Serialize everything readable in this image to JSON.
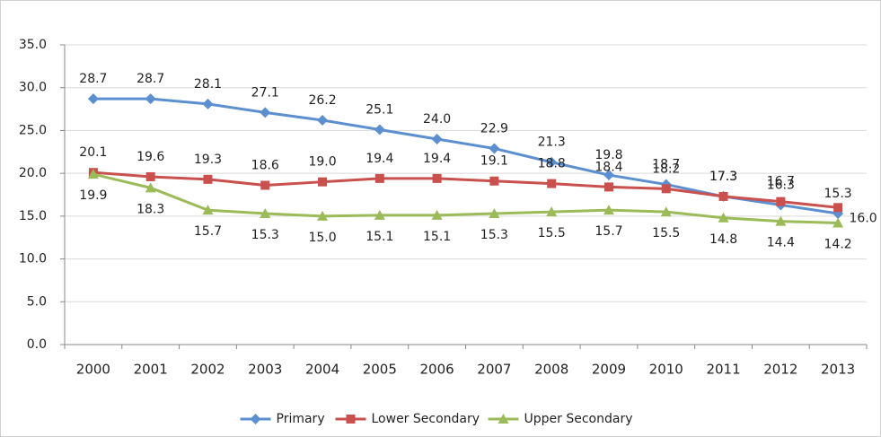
{
  "chart_data": {
    "type": "line",
    "categories": [
      "2000",
      "2001",
      "2002",
      "2003",
      "2004",
      "2005",
      "2006",
      "2007",
      "2008",
      "2009",
      "2010",
      "2011",
      "2012",
      "2013"
    ],
    "series": [
      {
        "name": "Primary",
        "color": "#5b8fd0",
        "marker": "diamond",
        "values": [
          28.7,
          28.7,
          28.1,
          27.1,
          26.2,
          25.1,
          24.0,
          22.9,
          21.3,
          19.8,
          18.7,
          17.3,
          16.3,
          15.3
        ],
        "value_labels": [
          "28.7",
          "28.7",
          "28.1",
          "27.1",
          "26.2",
          "25.1",
          "24.0",
          "22.9",
          "21.3",
          "19.8",
          "18.7",
          "17.3",
          "16.3",
          "15.3"
        ]
      },
      {
        "name": "Lower Secondary",
        "color": "#c9504d",
        "marker": "square",
        "values": [
          20.1,
          19.6,
          19.3,
          18.6,
          19.0,
          19.4,
          19.4,
          19.1,
          18.8,
          18.4,
          18.2,
          17.3,
          16.7,
          16.0
        ],
        "value_labels": [
          "20.1",
          "19.6",
          "19.3",
          "18.6",
          "19.0",
          "19.4",
          "19.4",
          "19.1",
          "18.8",
          "18.4",
          "18.2",
          "17.3",
          "16.7",
          "16.0"
        ]
      },
      {
        "name": "Upper Secondary",
        "color": "#9bbb59",
        "marker": "triangle",
        "values": [
          19.9,
          18.3,
          15.7,
          15.3,
          15.0,
          15.1,
          15.1,
          15.3,
          15.5,
          15.7,
          15.5,
          14.8,
          14.4,
          14.2
        ],
        "value_labels": [
          "19.9",
          "18.3",
          "15.7",
          "15.3",
          "15.0",
          "15.1",
          "15.1",
          "15.3",
          "15.5",
          "15.7",
          "15.5",
          "14.8",
          "14.4",
          "14.2"
        ]
      }
    ],
    "ylim": [
      0,
      35
    ],
    "yticks": [
      {
        "value": 0,
        "label": "0.0"
      },
      {
        "value": 5,
        "label": "5.0"
      },
      {
        "value": 10,
        "label": "10.0"
      },
      {
        "value": 15,
        "label": "15.0"
      },
      {
        "value": 20,
        "label": "20.0"
      },
      {
        "value": 25,
        "label": "25.0"
      },
      {
        "value": 30,
        "label": "30.0"
      },
      {
        "value": 35,
        "label": "35.0"
      }
    ],
    "grid": true,
    "legend": "bottom"
  }
}
